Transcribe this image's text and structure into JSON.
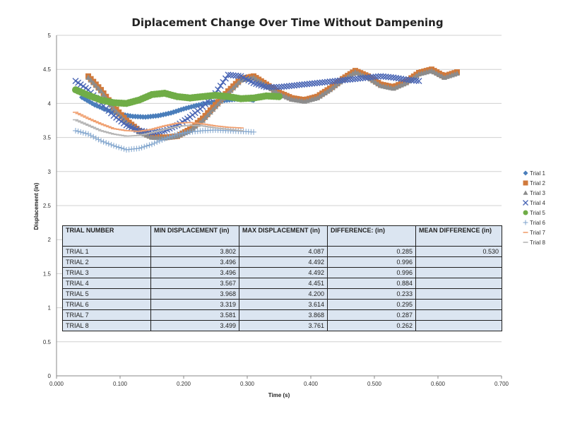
{
  "chart_data": {
    "type": "scatter",
    "title": "Diplacement Change Over Time Without Dampening",
    "xlabel": "Time (s)",
    "ylabel": "Displacement (in)",
    "xlim": [
      0.0,
      0.7
    ],
    "ylim": [
      0,
      5
    ],
    "x_ticks": [
      "0.000",
      "0.100",
      "0.200",
      "0.300",
      "0.400",
      "0.500",
      "0.600",
      "0.700"
    ],
    "y_ticks": [
      "0",
      "0.5",
      "1",
      "1.5",
      "2",
      "2.5",
      "3",
      "3.5",
      "4",
      "4.5",
      "5"
    ],
    "grid": "horizontal",
    "legend_position": "right",
    "series": [
      {
        "name": "Trial 1",
        "color": "#4a7ebb",
        "marker": "diamond",
        "x": [
          0.04,
          0.06,
          0.08,
          0.1,
          0.12,
          0.14,
          0.16,
          0.18,
          0.2,
          0.22,
          0.24,
          0.26,
          0.28,
          0.3,
          0.31
        ],
        "y": [
          4.09,
          3.98,
          3.9,
          3.84,
          3.81,
          3.8,
          3.82,
          3.86,
          3.92,
          3.97,
          4.01,
          4.04,
          4.06,
          4.07,
          4.05
        ]
      },
      {
        "name": "Trial 2",
        "color": "#d07a3c",
        "marker": "square",
        "x": [
          0.05,
          0.07,
          0.09,
          0.11,
          0.13,
          0.15,
          0.17,
          0.19,
          0.21,
          0.23,
          0.25,
          0.27,
          0.29,
          0.31,
          0.33,
          0.35,
          0.37,
          0.39,
          0.41,
          0.43,
          0.45,
          0.47,
          0.49,
          0.51,
          0.53,
          0.55,
          0.57,
          0.59,
          0.61,
          0.63
        ],
        "y": [
          4.4,
          4.2,
          3.95,
          3.75,
          3.6,
          3.52,
          3.5,
          3.52,
          3.62,
          3.78,
          3.98,
          4.18,
          4.36,
          4.4,
          4.28,
          4.16,
          4.08,
          4.05,
          4.1,
          4.22,
          4.36,
          4.48,
          4.4,
          4.28,
          4.24,
          4.32,
          4.45,
          4.5,
          4.4,
          4.46
        ]
      },
      {
        "name": "Trial 3",
        "color": "#8c8c8c",
        "marker": "triangle",
        "x": [
          0.05,
          0.07,
          0.09,
          0.11,
          0.13,
          0.15,
          0.17,
          0.19,
          0.21,
          0.23,
          0.25,
          0.27,
          0.29,
          0.31,
          0.33,
          0.35,
          0.37,
          0.39,
          0.41,
          0.43,
          0.45,
          0.47,
          0.49,
          0.51,
          0.53,
          0.55,
          0.57,
          0.59,
          0.61,
          0.63
        ],
        "y": [
          4.38,
          4.18,
          3.92,
          3.72,
          3.58,
          3.5,
          3.49,
          3.52,
          3.6,
          3.75,
          3.95,
          4.15,
          4.34,
          4.38,
          4.26,
          4.14,
          4.06,
          4.03,
          4.08,
          4.2,
          4.34,
          4.46,
          4.38,
          4.26,
          4.22,
          4.3,
          4.43,
          4.48,
          4.38,
          4.44
        ]
      },
      {
        "name": "Trial 4",
        "color": "#4a66b5",
        "marker": "x",
        "x": [
          0.03,
          0.05,
          0.07,
          0.09,
          0.11,
          0.13,
          0.15,
          0.17,
          0.19,
          0.21,
          0.23,
          0.25,
          0.27,
          0.29,
          0.31,
          0.33,
          0.35,
          0.37,
          0.39,
          0.41,
          0.43,
          0.45,
          0.47,
          0.49,
          0.51,
          0.53,
          0.55,
          0.57
        ],
        "y": [
          4.33,
          4.2,
          4.0,
          3.82,
          3.68,
          3.6,
          3.57,
          3.6,
          3.68,
          3.8,
          3.95,
          4.15,
          4.42,
          4.4,
          4.3,
          4.24,
          4.24,
          4.26,
          4.28,
          4.3,
          4.32,
          4.34,
          4.36,
          4.38,
          4.4,
          4.38,
          4.35,
          4.33
        ]
      },
      {
        "name": "Trial 5",
        "color": "#70ad47",
        "marker": "circle",
        "x": [
          0.03,
          0.05,
          0.07,
          0.09,
          0.11,
          0.13,
          0.15,
          0.17,
          0.19,
          0.21,
          0.23,
          0.25,
          0.27,
          0.29,
          0.31,
          0.33,
          0.35
        ],
        "y": [
          4.2,
          4.12,
          4.05,
          4.01,
          4.0,
          4.05,
          4.13,
          4.15,
          4.1,
          4.08,
          4.1,
          4.12,
          4.1,
          4.07,
          4.08,
          4.11,
          4.1
        ]
      },
      {
        "name": "Trial 6",
        "color": "#7ea3cc",
        "marker": "plus",
        "x": [
          0.03,
          0.05,
          0.07,
          0.09,
          0.11,
          0.13,
          0.15,
          0.17,
          0.19,
          0.21,
          0.23,
          0.25,
          0.27,
          0.29,
          0.31
        ],
        "y": [
          3.6,
          3.55,
          3.45,
          3.38,
          3.32,
          3.34,
          3.4,
          3.48,
          3.55,
          3.58,
          3.6,
          3.61,
          3.6,
          3.59,
          3.58
        ]
      },
      {
        "name": "Trial 7",
        "color": "#f0a070",
        "marker": "dash",
        "x": [
          0.03,
          0.05,
          0.07,
          0.09,
          0.11,
          0.13,
          0.15,
          0.17,
          0.19,
          0.21,
          0.23,
          0.25,
          0.27,
          0.29
        ],
        "y": [
          3.87,
          3.78,
          3.7,
          3.63,
          3.6,
          3.59,
          3.62,
          3.67,
          3.71,
          3.72,
          3.7,
          3.67,
          3.65,
          3.64
        ]
      },
      {
        "name": "Trial 8",
        "color": "#b5b5b5",
        "marker": "dash",
        "x": [
          0.03,
          0.05,
          0.07,
          0.09,
          0.11,
          0.13,
          0.15,
          0.17,
          0.19,
          0.21,
          0.23,
          0.25,
          0.27,
          0.29
        ],
        "y": [
          3.76,
          3.68,
          3.6,
          3.55,
          3.52,
          3.53,
          3.57,
          3.62,
          3.66,
          3.68,
          3.67,
          3.64,
          3.62,
          3.6
        ]
      }
    ],
    "table": {
      "headers": [
        "TRIAL NUMBER",
        "MIN DISPLACEMENT (in)",
        "MAX DISPLACEMENT (in)",
        "DIFFERENCE: (in)",
        "MEAN DIFFERENCE (in)"
      ],
      "rows": [
        [
          "TRIAL 1",
          "3.802",
          "4.087",
          "0.285",
          "0.530"
        ],
        [
          "TRIAL 2",
          "3.496",
          "4.492",
          "0.996",
          ""
        ],
        [
          "TRIAL 3",
          "3.496",
          "4.492",
          "0.996",
          ""
        ],
        [
          "TRIAL 4",
          "3.567",
          "4.451",
          "0.884",
          ""
        ],
        [
          "TRIAL 5",
          "3.968",
          "4.200",
          "0.233",
          ""
        ],
        [
          "TRIAL 6",
          "3.319",
          "3.614",
          "0.295",
          ""
        ],
        [
          "TRIAL 7",
          "3.581",
          "3.868",
          "0.287",
          ""
        ],
        [
          "TRIAL 8",
          "3.499",
          "3.761",
          "0.262",
          ""
        ]
      ]
    }
  }
}
